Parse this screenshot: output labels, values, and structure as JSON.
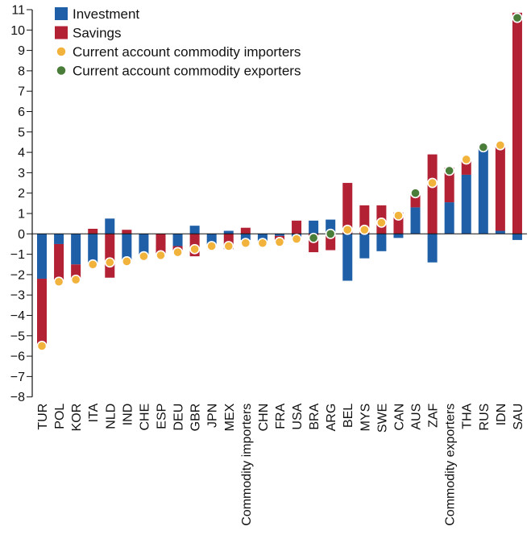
{
  "chart_data": {
    "type": "bar",
    "stacked": true,
    "ylim": [
      -8,
      11
    ],
    "yticks": [
      -8,
      -7,
      -6,
      -5,
      -4,
      -3,
      -2,
      -1,
      0,
      1,
      2,
      3,
      4,
      5,
      6,
      7,
      8,
      9,
      10,
      11
    ],
    "grid": false,
    "legend_position": "top-left",
    "categories": [
      "TUR",
      "POL",
      "KOR",
      "ITA",
      "NLD",
      "IND",
      "CHE",
      "ESP",
      "DEU",
      "GBR",
      "JPN",
      "MEX",
      "Commodity importers",
      "CHN",
      "FRA",
      "USA",
      "BRA",
      "ARG",
      "BEL",
      "MYS",
      "SWE",
      "CAN",
      "AUS",
      "ZAF",
      "Commodity exporters",
      "THA",
      "RUS",
      "IDN",
      "SAU"
    ],
    "series": [
      {
        "name": "Investment",
        "kind": "bar",
        "color": "#1f5fa8",
        "values": [
          -2.2,
          -0.5,
          -1.5,
          -1.6,
          0.75,
          -1.4,
          -1.0,
          0.0,
          -0.6,
          0.4,
          -0.5,
          0.15,
          -0.3,
          -0.4,
          -0.1,
          -0.2,
          0.65,
          0.7,
          -2.3,
          -1.2,
          -0.85,
          -0.2,
          1.3,
          -1.4,
          1.55,
          2.9,
          4.3,
          0.15,
          -0.3
        ]
      },
      {
        "name": "Savings",
        "kind": "bar",
        "color": "#b22234",
        "values": [
          -3.3,
          -1.9,
          -0.75,
          0.25,
          -2.15,
          0.2,
          -0.1,
          -1.0,
          -0.3,
          -1.1,
          -0.1,
          -0.75,
          0.3,
          -0.05,
          -0.35,
          0.65,
          -0.9,
          -0.8,
          2.5,
          1.4,
          1.4,
          1.05,
          0.6,
          3.9,
          1.7,
          0.75,
          0.0,
          4.2,
          10.85
        ]
      },
      {
        "name": "Current account commodity importers",
        "kind": "point",
        "color": "#f2b33d",
        "values": [
          -5.5,
          -2.35,
          -2.25,
          -1.5,
          -1.4,
          -1.35,
          -1.1,
          -1.05,
          -0.9,
          -0.75,
          -0.6,
          -0.6,
          -0.45,
          -0.45,
          -0.4,
          -0.25,
          null,
          null,
          0.2,
          0.2,
          0.55,
          0.9,
          null,
          2.5,
          null,
          3.65,
          null,
          4.35,
          null
        ]
      },
      {
        "name": "Current account commodity exporters",
        "kind": "point",
        "color": "#4a7c3a",
        "values": [
          null,
          null,
          null,
          null,
          null,
          null,
          null,
          null,
          null,
          null,
          null,
          null,
          null,
          null,
          null,
          null,
          -0.2,
          0.0,
          null,
          null,
          null,
          null,
          2.0,
          null,
          3.1,
          null,
          4.25,
          null,
          10.6
        ]
      }
    ]
  }
}
